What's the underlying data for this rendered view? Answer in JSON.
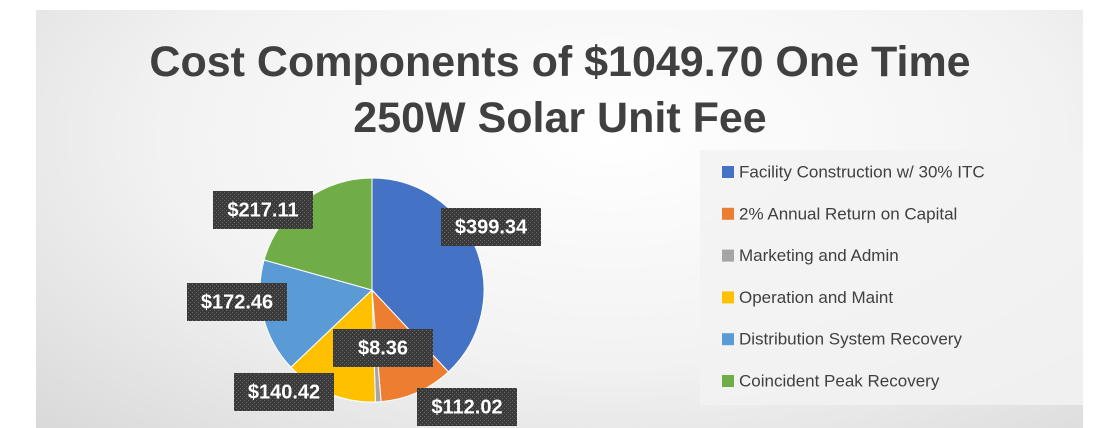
{
  "chart_data": {
    "type": "pie",
    "title": "Cost Components of $1049.70 One Time 250W Solar Unit Fee",
    "categories": [
      "Facility Construction w/ 30% ITC",
      "2% Annual Return on Capital",
      "Marketing and Admin",
      "Operation and Maint",
      "Distribution System Recovery",
      "Coincident Peak Recovery"
    ],
    "values": [
      399.34,
      112.02,
      8.36,
      140.42,
      172.46,
      217.11
    ],
    "value_labels": [
      "$399.34",
      "$112.02",
      "$8.36",
      "$140.42",
      "$172.46",
      "$217.11"
    ],
    "colors": [
      "#4472c4",
      "#ed7d31",
      "#a5a5a5",
      "#ffc000",
      "#5b9bd5",
      "#70ad47"
    ],
    "legend": "right"
  }
}
